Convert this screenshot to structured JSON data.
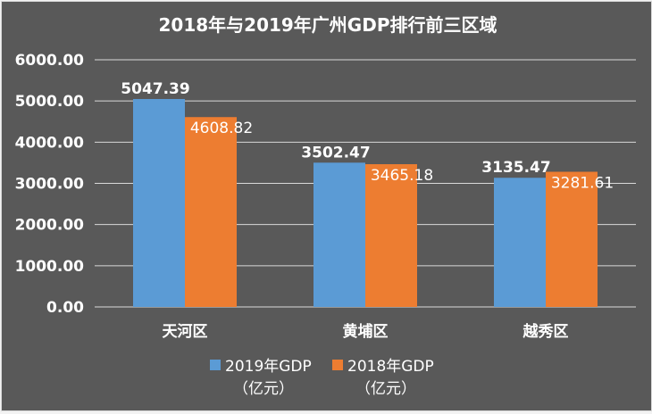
{
  "chart_data": {
    "type": "bar",
    "title": "2018年与2019年广州GDP排行前三区域",
    "categories": [
      "天河区",
      "黄埔区",
      "越秀区"
    ],
    "series": [
      {
        "name": "2019年GDP\n（亿元）",
        "name_line1": "2019年GDP",
        "name_line2": "（亿元）",
        "values": [
          5047.39,
          3502.47,
          3135.47
        ],
        "labels": [
          "5047.39",
          "3502.47",
          "3135.47"
        ],
        "color": "#5b9bd5"
      },
      {
        "name": "2018年GDP\n（亿元）",
        "name_line1": "2018年GDP",
        "name_line2": "（亿元）",
        "values": [
          4608.82,
          3465.18,
          3281.61
        ],
        "labels": [
          "4608.82",
          "3465.18",
          "3281.61"
        ],
        "color": "#ed7d31"
      }
    ],
    "yticks": [
      "0.00",
      "1000.00",
      "2000.00",
      "3000.00",
      "4000.00",
      "5000.00",
      "6000.00"
    ],
    "ylim": [
      0,
      6000
    ],
    "grid": true,
    "legend": "bottom",
    "background": "#595959"
  }
}
